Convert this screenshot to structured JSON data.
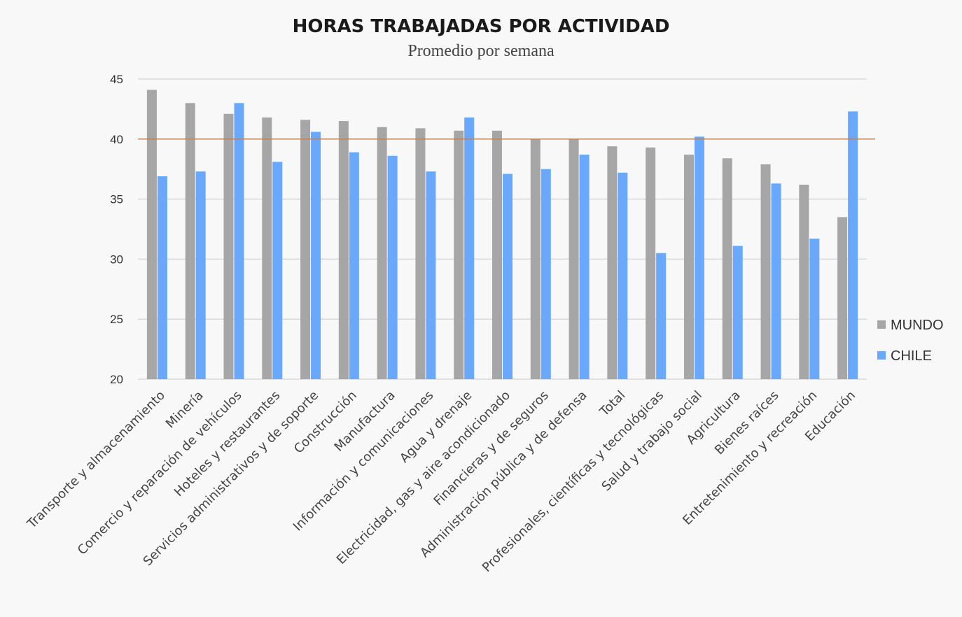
{
  "chart_data": {
    "type": "bar",
    "title": "HORAS TRABAJADAS POR ACTIVIDAD",
    "subtitle": "Promedio por semana",
    "xlabel": "",
    "ylabel": "",
    "ylim": [
      20,
      45
    ],
    "yticks": [
      20,
      25,
      30,
      35,
      40,
      45
    ],
    "reference_line": 40,
    "grid": true,
    "legend_position": "right",
    "categories": [
      "Transporte y almacenamiento",
      "Minería",
      "Comercio y reparación de vehículos",
      "Hoteles y restaurantes",
      "Servicios administrativos y de soporte",
      "Construcción",
      "Manufactura",
      "Información y comunicaciones",
      "Agua y drenaje",
      "Electricidad, gas y aire acondicionado",
      "Financieras y de seguros",
      "Administración pública y de defensa",
      "Total",
      "Profesionales, científicas y tecnológicas",
      "Salud y trabajo social",
      "Agricultura",
      "Bienes raíces",
      "Entretenimiento y recreación",
      "Educación"
    ],
    "series": [
      {
        "name": "MUNDO",
        "color": "#a6a6a6",
        "values": [
          44.1,
          43.0,
          42.1,
          41.8,
          41.6,
          41.5,
          41.0,
          40.9,
          40.7,
          40.7,
          40.0,
          40.0,
          39.4,
          39.3,
          38.7,
          38.4,
          37.9,
          36.2,
          33.5
        ]
      },
      {
        "name": "CHILE",
        "color": "#6aa8fc",
        "values": [
          36.9,
          37.3,
          43.0,
          38.1,
          40.6,
          38.9,
          38.6,
          37.3,
          41.8,
          37.1,
          37.5,
          38.7,
          37.2,
          30.5,
          40.2,
          31.1,
          36.3,
          31.7,
          42.3
        ]
      }
    ],
    "gridline_color": "#d9d9d9",
    "reference_line_color": "#c87f4f"
  }
}
